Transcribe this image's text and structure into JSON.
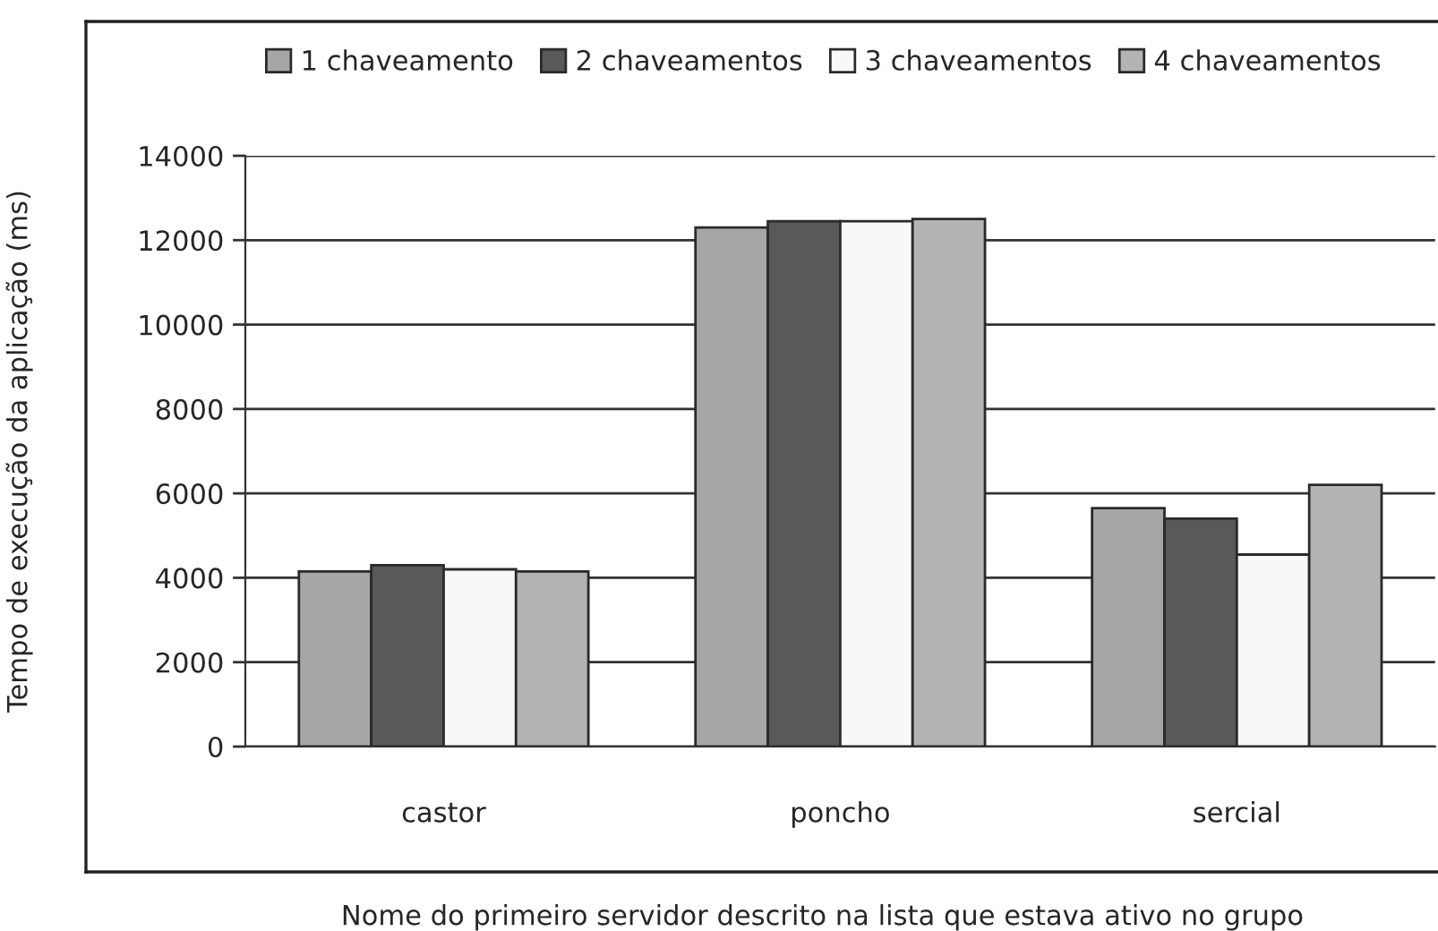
{
  "chart_data": {
    "type": "bar",
    "xlabel": "Nome do primeiro servidor descrito na lista que estava ativo no grupo",
    "ylabel": "Tempo de execução da aplicação (ms)",
    "categories": [
      "castor",
      "poncho",
      "sercial"
    ],
    "series": [
      {
        "name": "1 chaveamento",
        "color": "#a6a6a6",
        "values": [
          4150,
          12300,
          5650
        ]
      },
      {
        "name": "2 chaveamentos",
        "color": "#595959",
        "values": [
          4300,
          12450,
          5400
        ]
      },
      {
        "name": "3 chaveamentos",
        "color": "#f8f8f8",
        "values": [
          4200,
          12450,
          4550
        ]
      },
      {
        "name": "4 chaveamentos",
        "color": "#b3b3b3",
        "values": [
          4150,
          12500,
          6200
        ]
      }
    ],
    "ylim": [
      0,
      14000
    ],
    "yticks": [
      0,
      2000,
      4000,
      6000,
      8000,
      10000,
      12000,
      14000
    ],
    "grid": "y",
    "legend": "top"
  }
}
